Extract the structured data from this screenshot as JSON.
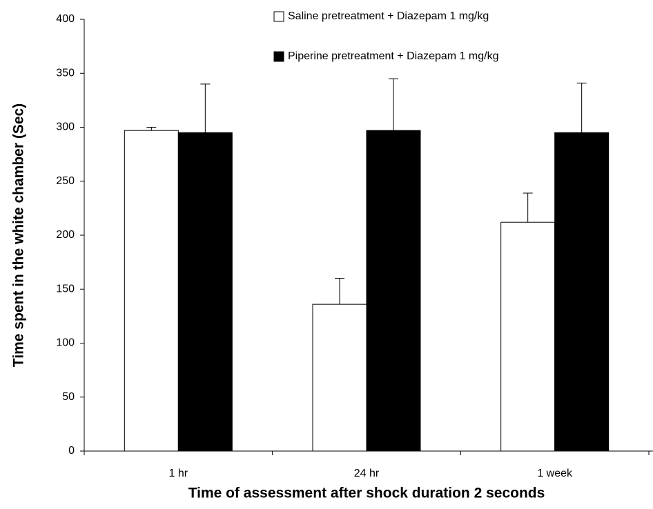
{
  "chart_data": {
    "type": "bar",
    "x_label": "Time of assessment after shock duration 2 seconds",
    "y_label": "Time spent in the white chamber (Sec)",
    "categories": [
      "1 hr",
      "24 hr",
      "1 week"
    ],
    "series": [
      {
        "name": "Saline pretreatment + Diazepam 1 mg/kg",
        "color": "#ffffff",
        "values": [
          297,
          136,
          212
        ],
        "errors": [
          3,
          24,
          27
        ]
      },
      {
        "name": "Piperine pretreatment + Diazepam 1 mg/kg",
        "color": "#000000",
        "values": [
          295,
          297,
          295
        ],
        "errors": [
          45,
          48,
          46
        ]
      }
    ],
    "ylim": [
      0,
      400
    ],
    "yticks": [
      0,
      50,
      100,
      150,
      200,
      250,
      300,
      350,
      400
    ],
    "grid": false
  }
}
